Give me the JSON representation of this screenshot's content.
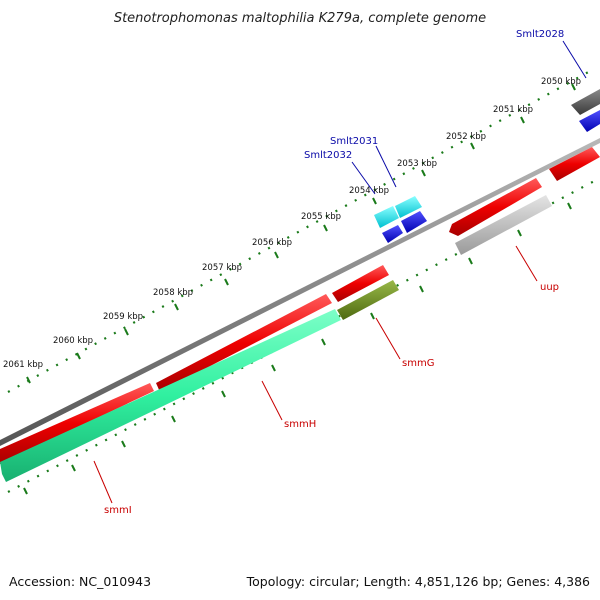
{
  "title": "Stenotrophomonas maltophilia K279a, complete genome",
  "footer": {
    "accession": "Accession: NC_010943",
    "summary": "Topology: circular; Length: 4,851,126 bp; Genes: 4,386"
  },
  "ticks": [
    {
      "label": "2050 kbp"
    },
    {
      "label": "2051 kbp"
    },
    {
      "label": "2052 kbp"
    },
    {
      "label": "2053 kbp"
    },
    {
      "label": "2054 kbp"
    },
    {
      "label": "2055 kbp"
    },
    {
      "label": "2056 kbp"
    },
    {
      "label": "2057 kbp"
    },
    {
      "label": "2058 kbp"
    },
    {
      "label": "2059 kbp"
    },
    {
      "label": "2060 kbp"
    },
    {
      "label": "2061 kbp"
    }
  ],
  "gene_labels": {
    "smlt2028": "Smlt2028",
    "smlt2031": "Smlt2031",
    "smlt2032": "Smlt2032",
    "uup": "uup",
    "smmG": "smmG",
    "smmH": "smmH",
    "smmI": "smmI"
  },
  "colors": {
    "forward_cds": "#e80000",
    "reverse_cds": "#30f0a0",
    "smmG": "#6a8a20",
    "uup": "#bdbdbd",
    "trna": "#00e5f0",
    "rrna": "#1010e0",
    "pseudo": "#555555",
    "backbone": "#888888",
    "ruler": "#1a7a1a"
  }
}
